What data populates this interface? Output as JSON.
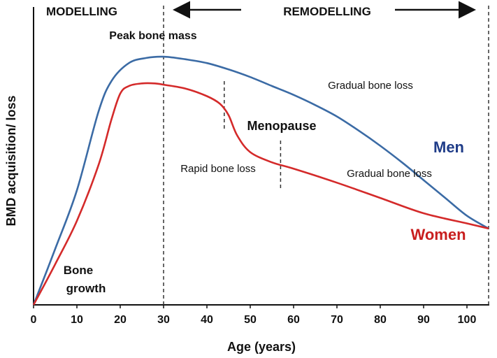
{
  "chart_data": {
    "type": "line",
    "title": "",
    "xlabel": "Age (years)",
    "ylabel": "BMD acquisition/ loss",
    "xlim": [
      0,
      105
    ],
    "x_ticks": [
      0,
      10,
      20,
      30,
      40,
      50,
      60,
      70,
      80,
      90,
      100
    ],
    "ylim": [
      0,
      1
    ],
    "y_ticks": [],
    "grid": false,
    "legend": "inline-labels",
    "series": [
      {
        "name": "Men",
        "color": "#3b6ba5",
        "label_color": "#1f3c88",
        "x": [
          0,
          5,
          10,
          15,
          18,
          22,
          26,
          30,
          35,
          40,
          45,
          50,
          55,
          60,
          65,
          70,
          75,
          80,
          85,
          90,
          95,
          100,
          105
        ],
        "y": [
          0.0,
          0.22,
          0.45,
          0.76,
          0.88,
          0.95,
          0.97,
          0.975,
          0.965,
          0.95,
          0.925,
          0.895,
          0.86,
          0.825,
          0.785,
          0.74,
          0.685,
          0.625,
          0.56,
          0.49,
          0.42,
          0.35,
          0.3
        ]
      },
      {
        "name": "Women",
        "color": "#d42a2a",
        "label_color": "#c81e1e",
        "x": [
          0,
          5,
          10,
          15,
          18,
          20,
          22,
          25,
          28,
          30,
          35,
          40,
          43,
          45,
          47,
          50,
          55,
          60,
          70,
          80,
          90,
          100,
          105
        ],
        "y": [
          0.0,
          0.16,
          0.33,
          0.55,
          0.73,
          0.83,
          0.86,
          0.87,
          0.87,
          0.865,
          0.85,
          0.82,
          0.79,
          0.745,
          0.665,
          0.6,
          0.56,
          0.535,
          0.48,
          0.42,
          0.36,
          0.32,
          0.3
        ]
      }
    ],
    "annotations": {
      "modelling": "MODELLING",
      "remodelling": "REMODELLING",
      "peak": "Peak bone mass",
      "gradual_men": "Gradual bone loss",
      "menopause": "Menopause",
      "rapid": "Rapid bone loss",
      "gradual_women": "Gradual bone loss",
      "bone_growth_line1": "Bone",
      "bone_growth_line2": "growth"
    },
    "reference_lines_x": [
      30,
      44,
      57,
      105
    ]
  }
}
